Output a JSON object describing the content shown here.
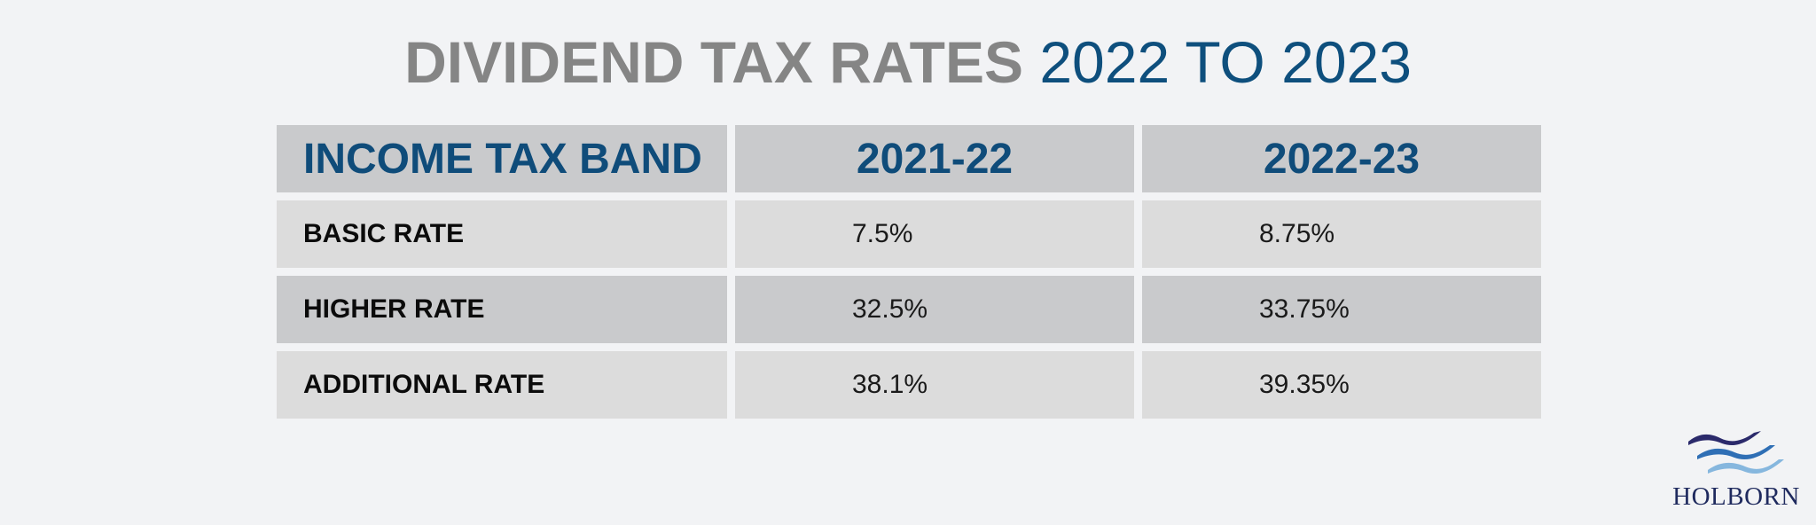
{
  "title": {
    "bold": "DIVIDEND TAX RATES",
    "light": "2022 TO 2023"
  },
  "table": {
    "headers": [
      "INCOME TAX BAND",
      "2021-22",
      "2022-23"
    ],
    "rows": [
      {
        "band": "BASIC RATE",
        "y2021_22": "7.5%",
        "y2022_23": "8.75%"
      },
      {
        "band": "HIGHER RATE",
        "y2021_22": "32.5%",
        "y2022_23": "33.75%"
      },
      {
        "band": "ADDITIONAL RATE",
        "y2021_22": "38.1%",
        "y2022_23": "39.35%"
      }
    ]
  },
  "logo": {
    "text": "HOLBORN",
    "colors": [
      "#2b2a6b",
      "#2f6fb5",
      "#86b7de"
    ]
  },
  "colors": {
    "background": "#f2f3f5",
    "title_grey": "#858585",
    "title_blue": "#0e4f7d",
    "header_blue": "#0f4c7a",
    "cell_dark": "#c9cacc",
    "cell_light": "#dcdcdc"
  }
}
